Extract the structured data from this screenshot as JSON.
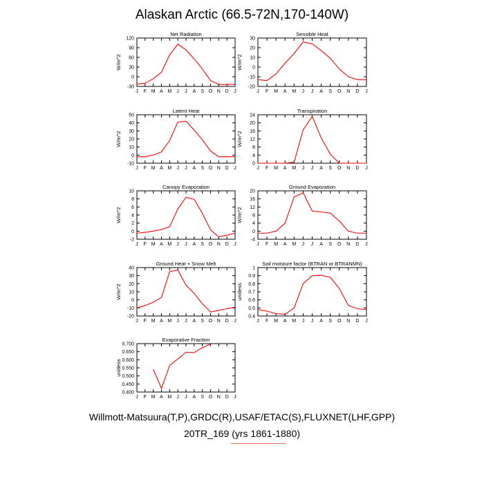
{
  "page": {
    "title": "Alaskan Arctic (66.5-72N,170-140W)",
    "source": "Willmott-Matsuura(T,P),GRDC(R),USAF/ETAC(S),FLUXNET(LHF,GPP)",
    "case": "20TR_169 (yrs 1861-1880)"
  },
  "colors": {
    "line": "#ff0000",
    "axis": "#000000"
  },
  "chart_data": [
    {
      "type": "line",
      "title": "Net Radiation",
      "ylabel": "W/m^2",
      "categories": [
        "J",
        "F",
        "M",
        "A",
        "M",
        "J",
        "J",
        "A",
        "S",
        "O",
        "N",
        "D",
        "J"
      ],
      "ylim": [
        -30,
        120
      ],
      "yticks": [
        -30,
        0,
        30,
        60,
        90,
        120
      ],
      "ytick_labels": [
        "-30",
        "0",
        "30",
        "60",
        "90",
        "120"
      ],
      "values": [
        -23,
        -20,
        -6,
        14,
        68,
        101,
        83,
        55,
        24,
        -12,
        -24,
        -24,
        -23
      ]
    },
    {
      "type": "line",
      "title": "Sensible Heat",
      "ylabel": "W/m^2",
      "categories": [
        "J",
        "F",
        "M",
        "A",
        "M",
        "J",
        "J",
        "A",
        "S",
        "O",
        "N",
        "D",
        "J"
      ],
      "ylim": [
        -20,
        30
      ],
      "yticks": [
        -20,
        -10,
        0,
        10,
        20,
        30
      ],
      "ytick_labels": [
        "-20",
        "-10",
        "0",
        "10",
        "20",
        "30"
      ],
      "values": [
        -13,
        -14,
        -7,
        4,
        14,
        26,
        24,
        17,
        9,
        -2,
        -10,
        -13,
        -13
      ]
    },
    {
      "type": "line",
      "title": "Latent Heat",
      "ylabel": "W/m^2",
      "categories": [
        "J",
        "F",
        "M",
        "A",
        "M",
        "J",
        "J",
        "A",
        "S",
        "O",
        "N",
        "D",
        "J"
      ],
      "ylim": [
        -10,
        50
      ],
      "yticks": [
        -10,
        0,
        10,
        20,
        30,
        40,
        50
      ],
      "ytick_labels": [
        "-10",
        "0",
        "10",
        "20",
        "30",
        "40",
        "50"
      ],
      "values": [
        -2,
        -2,
        0,
        4,
        18,
        41,
        42,
        31,
        19,
        5,
        -2,
        -2,
        -2
      ]
    },
    {
      "type": "line",
      "title": "Transpiration",
      "ylabel": "W/m^2",
      "categories": [
        "J",
        "F",
        "M",
        "A",
        "M",
        "J",
        "J",
        "A",
        "S",
        "O",
        "N",
        "D",
        "J"
      ],
      "ylim": [
        0,
        24
      ],
      "yticks": [
        0,
        4,
        8,
        12,
        16,
        20,
        24
      ],
      "ytick_labels": [
        "0",
        "4",
        "8",
        "12",
        "16",
        "20",
        "24"
      ],
      "values": [
        0,
        0,
        0,
        0,
        0.5,
        16.5,
        23.2,
        12.5,
        4.5,
        0,
        0,
        0,
        0
      ]
    },
    {
      "type": "line",
      "title": "Canopy Evaporation",
      "ylabel": "W/m^2",
      "categories": [
        "J",
        "F",
        "M",
        "A",
        "M",
        "J",
        "J",
        "A",
        "S",
        "O",
        "N",
        "D",
        "J"
      ],
      "ylim": [
        -2,
        10
      ],
      "yticks": [
        -2,
        0,
        2,
        4,
        6,
        8,
        10
      ],
      "ytick_labels": [
        "-2",
        "0",
        "2",
        "4",
        "6",
        "8",
        "10"
      ],
      "values": [
        -0.5,
        -0.3,
        0,
        0.4,
        1.1,
        5.5,
        8.4,
        7.9,
        4.4,
        0.3,
        -1.4,
        -1.0,
        -0.5
      ]
    },
    {
      "type": "line",
      "title": "Ground Evaporation",
      "ylabel": "W/m^2",
      "categories": [
        "J",
        "F",
        "M",
        "A",
        "M",
        "J",
        "J",
        "A",
        "S",
        "O",
        "N",
        "D",
        "J"
      ],
      "ylim": [
        -4,
        20
      ],
      "yticks": [
        -4,
        0,
        4,
        8,
        12,
        16,
        20
      ],
      "ytick_labels": [
        "-4",
        "0",
        "4",
        "8",
        "12",
        "16",
        "20"
      ],
      "values": [
        -1,
        -1,
        0,
        4,
        17,
        19,
        10,
        9.5,
        9,
        5,
        0,
        -1,
        -1
      ]
    },
    {
      "type": "line",
      "title": "Ground Heat + Snow Melt",
      "ylabel": "W/m^2",
      "categories": [
        "J",
        "F",
        "M",
        "A",
        "M",
        "J",
        "J",
        "A",
        "S",
        "O",
        "N",
        "D",
        "J"
      ],
      "ylim": [
        -20,
        40
      ],
      "yticks": [
        -20,
        -10,
        0,
        10,
        20,
        30,
        40
      ],
      "ytick_labels": [
        "-20",
        "-10",
        "0",
        "10",
        "20",
        "30",
        "40"
      ],
      "values": [
        -10,
        -7,
        -3,
        3,
        35,
        37,
        18,
        8,
        -5,
        -15,
        -13,
        -11,
        -9
      ]
    },
    {
      "type": "line",
      "title": "Soil moisture factor (BTRAN or BTRANMN)",
      "ylabel": "unitless",
      "categories": [
        "J",
        "F",
        "M",
        "A",
        "M",
        "J",
        "J",
        "A",
        "S",
        "O",
        "N",
        "D",
        "J"
      ],
      "ylim": [
        0.4,
        1.0
      ],
      "yticks": [
        0.4,
        0.5,
        0.6,
        0.7,
        0.8,
        0.9,
        1.0
      ],
      "ytick_labels": [
        "0.4",
        "0.5",
        "0.6",
        "0.7",
        "0.8",
        "0.9",
        "1"
      ],
      "values": [
        0.48,
        0.46,
        0.43,
        0.42,
        0.5,
        0.8,
        0.9,
        0.905,
        0.88,
        0.74,
        0.53,
        0.49,
        0.48
      ]
    },
    {
      "type": "line",
      "title": "Evaporative Fraction",
      "ylabel": "unitless",
      "categories": [
        "J",
        "F",
        "M",
        "A",
        "M",
        "J",
        "J",
        "A",
        "S",
        "O",
        "N",
        "D",
        "J"
      ],
      "ylim": [
        0.4,
        0.7
      ],
      "yticks": [
        0.4,
        0.45,
        0.5,
        0.55,
        0.6,
        0.65,
        0.7
      ],
      "ytick_labels": [
        "0.400",
        "0.450",
        "0.500",
        "0.550",
        "0.600",
        "0.650",
        "0.700"
      ],
      "values": [
        null,
        null,
        0.54,
        0.422,
        0.565,
        0.605,
        0.647,
        0.645,
        0.675,
        0.698,
        null,
        null,
        null
      ]
    }
  ]
}
